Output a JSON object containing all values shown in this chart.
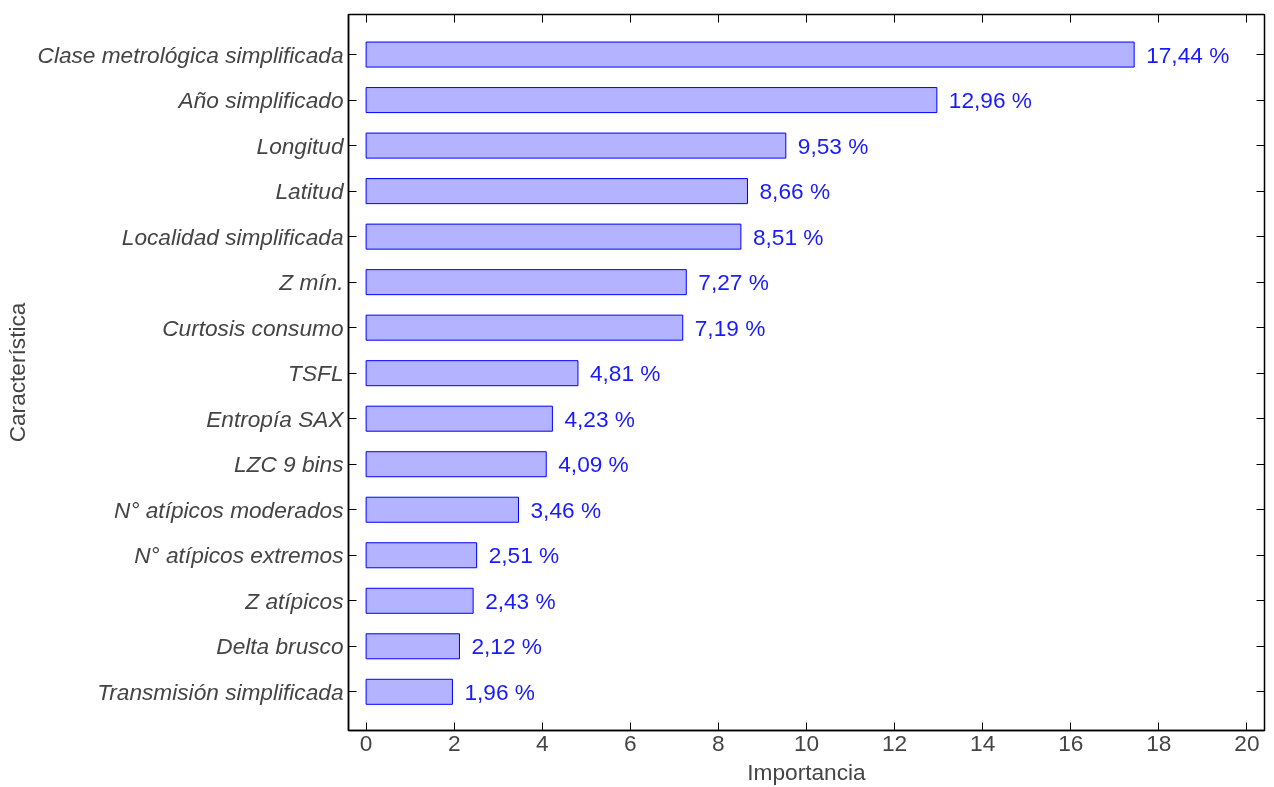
{
  "chart_data": {
    "type": "bar",
    "orientation": "horizontal",
    "xlabel": "Importancia",
    "ylabel": "Característica",
    "categories": [
      "Clase metrológica simplificada",
      "Año simplificado",
      "Longitud",
      "Latitud",
      "Localidad simplificada",
      "Z mín.",
      "Curtosis consumo",
      "TSFL",
      "Entropía SAX",
      "LZC 9 bins",
      "N° atípicos moderados",
      "N° atípicos extremos",
      "Z atípicos",
      "Delta brusco",
      "Transmisión simplificada"
    ],
    "values": [
      17.44,
      12.96,
      9.53,
      8.66,
      8.51,
      7.27,
      7.19,
      4.81,
      4.23,
      4.09,
      3.46,
      2.51,
      2.43,
      2.12,
      1.96
    ],
    "value_labels": [
      "17,44 %",
      "12,96 %",
      "9,53 %",
      "8,66 %",
      "8,51 %",
      "7,27 %",
      "7,19 %",
      "4,81 %",
      "4,23 %",
      "4,09 %",
      "3,46 %",
      "2,51 %",
      "2,43 %",
      "2,12 %",
      "1,96 %"
    ],
    "color": "#b3b3ff",
    "xlim": [
      -0.4,
      20.4
    ],
    "xticks": [
      0,
      2,
      4,
      6,
      8,
      10,
      12,
      14,
      16,
      18,
      20
    ],
    "grid": false
  }
}
